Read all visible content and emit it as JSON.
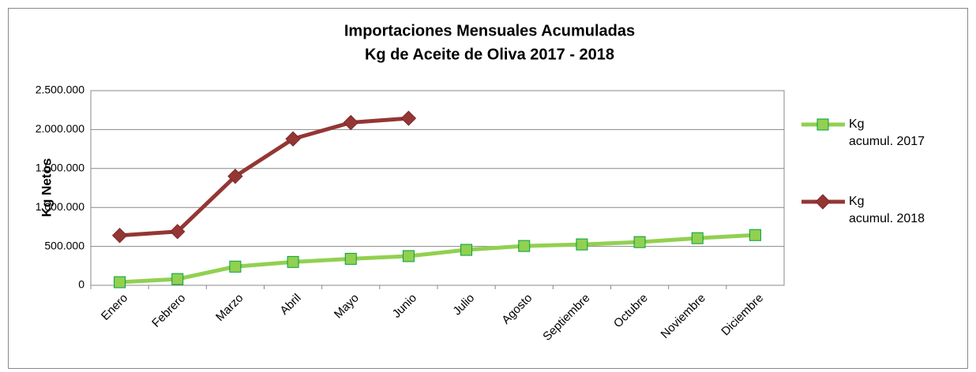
{
  "chart_data": {
    "type": "line",
    "title": [
      "Importaciones Mensuales Acumuladas",
      "Kg de Aceite de Oliva 2017 - 2018"
    ],
    "y_label": "Kg Netos",
    "categories": [
      "Enero",
      "Febrero",
      "Marzo",
      "Abril",
      "Mayo",
      "Junio",
      "Julio",
      "Agosto",
      "Septiembre",
      "Octubre",
      "Noviembre",
      "Diciembre"
    ],
    "series": [
      {
        "name": "Kg acumul. 2017",
        "color": "#92d050",
        "marker_edge": "#00a040",
        "marker": "square",
        "values": [
          40000,
          80000,
          240000,
          300000,
          340000,
          375000,
          455000,
          505000,
          525000,
          555000,
          605000,
          645000
        ]
      },
      {
        "name": "Kg acumul. 2018",
        "color": "#943634",
        "marker_edge": "#7a2a28",
        "marker": "diamond",
        "values": [
          640000,
          690000,
          1400000,
          1880000,
          2090000,
          2145000,
          null,
          null,
          null,
          null,
          null,
          null
        ]
      }
    ],
    "ylim": [
      0,
      2500000
    ],
    "yticks": [
      0,
      {
        "value": 500000,
        "label": "500.000"
      },
      {
        "value": 1000000,
        "label": "1.000.000"
      },
      {
        "value": 1500000,
        "label": "1.500.000"
      },
      {
        "value": 2000000,
        "label": "2.000.000"
      },
      {
        "value": 2500000,
        "label": "2.500.000"
      }
    ],
    "grid": true,
    "legend": "right"
  }
}
